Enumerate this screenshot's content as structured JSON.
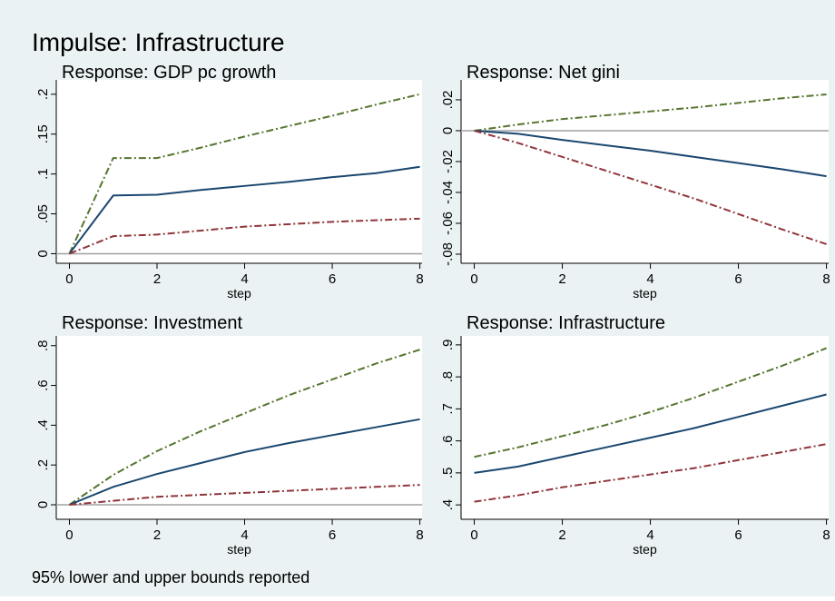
{
  "title": "Impulse: Infrastructure",
  "note": "95% lower and upper bounds reported",
  "chart_data": [
    {
      "type": "line",
      "title": "Response: GDP pc growth",
      "x_label": "step",
      "x": [
        0,
        1,
        2,
        3,
        4,
        5,
        6,
        7,
        8
      ],
      "xlim": [
        -0.3,
        8.05
      ],
      "xticks": [
        0,
        2,
        4,
        6,
        8
      ],
      "ylim": [
        -0.012,
        0.218
      ],
      "yticks": [
        0,
        {
          "value": 0.05,
          "label": ".05"
        },
        {
          "value": 0.1,
          "label": ".1"
        },
        {
          "value": 0.15,
          "label": ".15"
        },
        {
          "value": 0.2,
          "label": ".2"
        }
      ],
      "zero_line": true,
      "series": [
        {
          "color": "#55752f",
          "style": "dashdot",
          "values": [
            0,
            0.12,
            0.12,
            0.133,
            0.147,
            0.16,
            0.173,
            0.187,
            0.2
          ]
        },
        {
          "color": "#1a476f",
          "style": "solid",
          "values": [
            0,
            0.073,
            0.074,
            0.08,
            0.085,
            0.09,
            0.096,
            0.101,
            0.109
          ]
        },
        {
          "color": "#90353b",
          "style": "dashdot",
          "values": [
            0,
            0.022,
            0.024,
            0.029,
            0.034,
            0.037,
            0.04,
            0.042,
            0.044
          ]
        }
      ]
    },
    {
      "type": "line",
      "title": "Response: Net gini",
      "x_label": "step",
      "x": [
        0,
        1,
        2,
        3,
        4,
        5,
        6,
        7,
        8
      ],
      "xlim": [
        -0.3,
        8.05
      ],
      "xticks": [
        0,
        2,
        4,
        6,
        8
      ],
      "ylim": [
        -0.0859,
        0.0329
      ],
      "yticks": [
        {
          "value": -0.08,
          "label": "-.08"
        },
        {
          "value": -0.06,
          "label": "-.06"
        },
        {
          "value": -0.04,
          "label": "-.04"
        },
        {
          "value": -0.02,
          "label": "-.02"
        },
        0,
        {
          "value": 0.02,
          "label": ".02"
        }
      ],
      "zero_line": true,
      "series": [
        {
          "color": "#55752f",
          "style": "dashdot",
          "values": [
            0,
            0.004,
            0.0075,
            0.01,
            0.0125,
            0.015,
            0.018,
            0.021,
            0.0235
          ]
        },
        {
          "color": "#1a476f",
          "style": "solid",
          "values": [
            0,
            -0.002,
            -0.006,
            -0.0095,
            -0.013,
            -0.017,
            -0.021,
            -0.025,
            -0.0295
          ]
        },
        {
          "color": "#90353b",
          "style": "dashdot",
          "values": [
            0,
            -0.008,
            -0.017,
            -0.026,
            -0.035,
            -0.044,
            -0.054,
            -0.064,
            -0.0735
          ]
        }
      ]
    },
    {
      "type": "line",
      "title": "Response: Investment",
      "x_label": "step",
      "x": [
        0,
        1,
        2,
        3,
        4,
        5,
        6,
        7,
        8
      ],
      "xlim": [
        -0.3,
        8.05
      ],
      "xticks": [
        0,
        2,
        4,
        6,
        8
      ],
      "ylim": [
        -0.073,
        0.849
      ],
      "yticks": [
        0,
        {
          "value": 0.2,
          "label": ".2"
        },
        {
          "value": 0.4,
          "label": ".4"
        },
        {
          "value": 0.6,
          "label": ".6"
        },
        {
          "value": 0.8,
          "label": ".8"
        }
      ],
      "zero_line": true,
      "series": [
        {
          "color": "#55752f",
          "style": "dashdot",
          "values": [
            0,
            0.15,
            0.27,
            0.37,
            0.46,
            0.55,
            0.63,
            0.71,
            0.78
          ]
        },
        {
          "color": "#1a476f",
          "style": "solid",
          "values": [
            0,
            0.09,
            0.155,
            0.21,
            0.265,
            0.31,
            0.35,
            0.39,
            0.43
          ]
        },
        {
          "color": "#90353b",
          "style": "dashdot",
          "values": [
            0,
            0.02,
            0.04,
            0.05,
            0.06,
            0.07,
            0.08,
            0.09,
            0.1
          ]
        }
      ]
    },
    {
      "type": "line",
      "title": "Response: Infrastructure",
      "x_label": "step",
      "x": [
        0,
        1,
        2,
        3,
        4,
        5,
        6,
        7,
        8
      ],
      "xlim": [
        -0.3,
        8.05
      ],
      "xticks": [
        0,
        2,
        4,
        6,
        8
      ],
      "ylim": [
        0.355,
        0.928
      ],
      "yticks": [
        {
          "value": 0.4,
          "label": ".4"
        },
        {
          "value": 0.5,
          "label": ".5"
        },
        {
          "value": 0.6,
          "label": ".6"
        },
        {
          "value": 0.7,
          "label": ".7"
        },
        {
          "value": 0.8,
          "label": ".8"
        },
        {
          "value": 0.9,
          "label": ".9"
        }
      ],
      "zero_line": false,
      "series": [
        {
          "color": "#55752f",
          "style": "dashdot",
          "values": [
            0.55,
            0.58,
            0.615,
            0.65,
            0.69,
            0.735,
            0.785,
            0.835,
            0.89
          ]
        },
        {
          "color": "#1a476f",
          "style": "solid",
          "values": [
            0.5,
            0.52,
            0.55,
            0.58,
            0.61,
            0.64,
            0.675,
            0.71,
            0.745
          ]
        },
        {
          "color": "#90353b",
          "style": "dashdot",
          "values": [
            0.41,
            0.43,
            0.455,
            0.475,
            0.495,
            0.515,
            0.54,
            0.565,
            0.59
          ]
        }
      ]
    }
  ]
}
